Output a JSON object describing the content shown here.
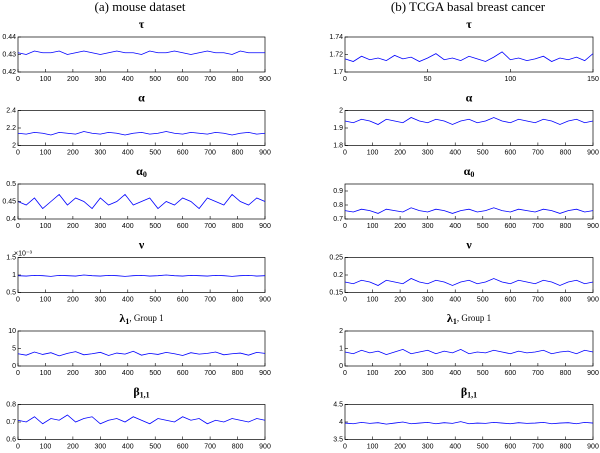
{
  "column_titles": [
    "(a) mouse dataset",
    "(b) TCGA basal breast cancer"
  ],
  "chart_data": [
    {
      "type": "line",
      "title": "τ",
      "color": "#0000ff",
      "x": [
        0,
        30,
        60,
        90,
        120,
        150,
        180,
        210,
        240,
        270,
        300,
        330,
        360,
        390,
        420,
        450,
        480,
        510,
        540,
        570,
        600,
        630,
        660,
        690,
        720,
        750,
        780,
        810,
        840,
        870,
        900
      ],
      "values": [
        0.431,
        0.43,
        0.432,
        0.431,
        0.431,
        0.432,
        0.43,
        0.431,
        0.432,
        0.431,
        0.43,
        0.431,
        0.432,
        0.431,
        0.431,
        0.43,
        0.432,
        0.431,
        0.431,
        0.432,
        0.431,
        0.43,
        0.431,
        0.432,
        0.431,
        0.431,
        0.43,
        0.432,
        0.431,
        0.431,
        0.431
      ],
      "xlim": [
        0,
        900
      ],
      "xticks": [
        0,
        100,
        200,
        300,
        400,
        500,
        600,
        700,
        800,
        900
      ],
      "ylim": [
        0.42,
        0.44
      ],
      "yticks": [
        0.42,
        0.43,
        0.44
      ]
    },
    {
      "type": "line",
      "title": "α",
      "color": "#0000ff",
      "x": [
        0,
        30,
        60,
        90,
        120,
        150,
        180,
        210,
        240,
        270,
        300,
        330,
        360,
        390,
        420,
        450,
        480,
        510,
        540,
        570,
        600,
        630,
        660,
        690,
        720,
        750,
        780,
        810,
        840,
        870,
        900
      ],
      "values": [
        2.14,
        2.13,
        2.15,
        2.14,
        2.12,
        2.15,
        2.14,
        2.13,
        2.16,
        2.14,
        2.13,
        2.15,
        2.14,
        2.12,
        2.14,
        2.15,
        2.13,
        2.14,
        2.16,
        2.14,
        2.13,
        2.15,
        2.14,
        2.13,
        2.15,
        2.14,
        2.12,
        2.14,
        2.15,
        2.13,
        2.14
      ],
      "xlim": [
        0,
        900
      ],
      "xticks": [
        0,
        100,
        200,
        300,
        400,
        500,
        600,
        700,
        800,
        900
      ],
      "ylim": [
        2,
        2.4
      ],
      "yticks": [
        2,
        2.2,
        2.4
      ]
    },
    {
      "type": "line",
      "title": "α",
      "title_sub": "0",
      "color": "#0000ff",
      "x": [
        0,
        30,
        60,
        90,
        120,
        150,
        180,
        210,
        240,
        270,
        300,
        330,
        360,
        390,
        420,
        450,
        480,
        510,
        540,
        570,
        600,
        630,
        660,
        690,
        720,
        750,
        780,
        810,
        840,
        870,
        900
      ],
      "values": [
        0.45,
        0.44,
        0.46,
        0.43,
        0.45,
        0.47,
        0.44,
        0.46,
        0.45,
        0.43,
        0.46,
        0.44,
        0.45,
        0.47,
        0.44,
        0.45,
        0.46,
        0.43,
        0.45,
        0.44,
        0.46,
        0.45,
        0.43,
        0.46,
        0.45,
        0.44,
        0.47,
        0.45,
        0.44,
        0.46,
        0.45
      ],
      "xlim": [
        0,
        900
      ],
      "xticks": [
        0,
        100,
        200,
        300,
        400,
        500,
        600,
        700,
        800,
        900
      ],
      "ylim": [
        0.4,
        0.5
      ],
      "yticks": [
        0.4,
        0.45,
        0.5
      ]
    },
    {
      "type": "line",
      "title": "ν",
      "y_multiplier": "×10⁻³",
      "color": "#0000ff",
      "x": [
        0,
        30,
        60,
        90,
        120,
        150,
        180,
        210,
        240,
        270,
        300,
        330,
        360,
        390,
        420,
        450,
        480,
        510,
        540,
        570,
        600,
        630,
        660,
        690,
        720,
        750,
        780,
        810,
        840,
        870,
        900
      ],
      "values": [
        0.98,
        0.97,
        0.99,
        0.98,
        0.96,
        0.99,
        0.98,
        0.97,
        1.0,
        0.98,
        0.97,
        0.99,
        0.98,
        0.96,
        0.98,
        0.99,
        0.97,
        0.98,
        1.0,
        0.98,
        0.97,
        0.99,
        0.98,
        0.97,
        0.99,
        0.98,
        0.96,
        0.98,
        0.99,
        0.97,
        0.98
      ],
      "xlim": [
        0,
        900
      ],
      "xticks": [
        0,
        100,
        200,
        300,
        400,
        500,
        600,
        700,
        800,
        900
      ],
      "ylim": [
        0.5,
        1.5
      ],
      "yticks": [
        0.5,
        1,
        1.5
      ]
    },
    {
      "type": "line",
      "title": "λ",
      "title_sub": "1",
      "title_suffix": ", Group 1",
      "color": "#0000ff",
      "x": [
        0,
        30,
        60,
        90,
        120,
        150,
        180,
        210,
        240,
        270,
        300,
        330,
        360,
        390,
        420,
        450,
        480,
        510,
        540,
        570,
        600,
        630,
        660,
        690,
        720,
        750,
        780,
        810,
        840,
        870,
        900
      ],
      "values": [
        3.5,
        3.1,
        4.0,
        3.3,
        3.8,
        2.9,
        3.6,
        4.1,
        3.2,
        3.5,
        3.9,
        3.0,
        3.7,
        3.4,
        4.2,
        3.1,
        3.6,
        3.3,
        3.9,
        3.5,
        3.0,
        3.8,
        3.4,
        3.6,
        4.0,
        3.2,
        3.5,
        3.7,
        3.1,
        3.9,
        3.6
      ],
      "xlim": [
        0,
        900
      ],
      "xticks": [
        0,
        100,
        200,
        300,
        400,
        500,
        600,
        700,
        800,
        900
      ],
      "ylim": [
        0,
        10
      ],
      "yticks": [
        0,
        5,
        10
      ]
    },
    {
      "type": "line",
      "title": "β",
      "title_sub": "1,1",
      "color": "#0000ff",
      "x": [
        0,
        30,
        60,
        90,
        120,
        150,
        180,
        210,
        240,
        270,
        300,
        330,
        360,
        390,
        420,
        450,
        480,
        510,
        540,
        570,
        600,
        630,
        660,
        690,
        720,
        750,
        780,
        810,
        840,
        870,
        900
      ],
      "values": [
        0.71,
        0.7,
        0.73,
        0.69,
        0.72,
        0.71,
        0.74,
        0.7,
        0.72,
        0.73,
        0.69,
        0.71,
        0.72,
        0.7,
        0.73,
        0.71,
        0.69,
        0.72,
        0.71,
        0.7,
        0.73,
        0.71,
        0.72,
        0.69,
        0.71,
        0.7,
        0.72,
        0.71,
        0.7,
        0.72,
        0.71
      ],
      "xlim": [
        0,
        900
      ],
      "xticks": [
        0,
        100,
        200,
        300,
        400,
        500,
        600,
        700,
        800,
        900
      ],
      "ylim": [
        0.6,
        0.8
      ],
      "yticks": [
        0.6,
        0.7,
        0.8
      ]
    },
    {
      "type": "line",
      "title": "τ",
      "color": "#0000ff",
      "x": [
        0,
        5,
        10,
        15,
        20,
        25,
        30,
        35,
        40,
        45,
        50,
        55,
        60,
        65,
        70,
        75,
        80,
        85,
        90,
        95,
        100,
        105,
        110,
        115,
        120,
        125,
        130,
        135,
        140,
        145,
        150
      ],
      "values": [
        1.715,
        1.712,
        1.718,
        1.714,
        1.716,
        1.713,
        1.719,
        1.715,
        1.717,
        1.712,
        1.716,
        1.721,
        1.714,
        1.716,
        1.713,
        1.718,
        1.715,
        1.712,
        1.717,
        1.723,
        1.714,
        1.716,
        1.713,
        1.715,
        1.718,
        1.712,
        1.716,
        1.714,
        1.717,
        1.713,
        1.721
      ],
      "xlim": [
        0,
        150
      ],
      "xticks": [
        0,
        50,
        100,
        150
      ],
      "ylim": [
        1.7,
        1.74
      ],
      "yticks": [
        1.7,
        1.72,
        1.74
      ]
    },
    {
      "type": "line",
      "title": "α",
      "color": "#0000ff",
      "x": [
        0,
        30,
        60,
        90,
        120,
        150,
        180,
        210,
        240,
        270,
        300,
        330,
        360,
        390,
        420,
        450,
        480,
        510,
        540,
        570,
        600,
        630,
        660,
        690,
        720,
        750,
        780,
        810,
        840,
        870,
        900
      ],
      "values": [
        1.94,
        1.93,
        1.95,
        1.94,
        1.92,
        1.95,
        1.94,
        1.93,
        1.96,
        1.94,
        1.93,
        1.95,
        1.94,
        1.92,
        1.94,
        1.95,
        1.93,
        1.94,
        1.96,
        1.94,
        1.93,
        1.95,
        1.94,
        1.93,
        1.95,
        1.94,
        1.92,
        1.94,
        1.95,
        1.93,
        1.94
      ],
      "xlim": [
        0,
        900
      ],
      "xticks": [
        0,
        100,
        200,
        300,
        400,
        500,
        600,
        700,
        800,
        900
      ],
      "ylim": [
        1.8,
        2
      ],
      "yticks": [
        1.8,
        1.9,
        2
      ]
    },
    {
      "type": "line",
      "title": "α",
      "title_sub": "0",
      "color": "#0000ff",
      "x": [
        0,
        30,
        60,
        90,
        120,
        150,
        180,
        210,
        240,
        270,
        300,
        330,
        360,
        390,
        420,
        450,
        480,
        510,
        540,
        570,
        600,
        630,
        660,
        690,
        720,
        750,
        780,
        810,
        840,
        870,
        900
      ],
      "values": [
        0.76,
        0.75,
        0.77,
        0.76,
        0.74,
        0.77,
        0.76,
        0.75,
        0.78,
        0.76,
        0.75,
        0.77,
        0.76,
        0.74,
        0.76,
        0.77,
        0.75,
        0.76,
        0.78,
        0.76,
        0.75,
        0.77,
        0.76,
        0.75,
        0.77,
        0.76,
        0.74,
        0.76,
        0.77,
        0.75,
        0.76
      ],
      "xlim": [
        0,
        900
      ],
      "xticks": [
        0,
        100,
        200,
        300,
        400,
        500,
        600,
        700,
        800,
        900
      ],
      "ylim": [
        0.7,
        0.95
      ],
      "yticks": [
        0.7,
        0.8,
        0.9
      ]
    },
    {
      "type": "line",
      "title": "ν",
      "color": "#0000ff",
      "x": [
        0,
        30,
        60,
        90,
        120,
        150,
        180,
        210,
        240,
        270,
        300,
        330,
        360,
        390,
        420,
        450,
        480,
        510,
        540,
        570,
        600,
        630,
        660,
        690,
        720,
        750,
        780,
        810,
        840,
        870,
        900
      ],
      "values": [
        0.18,
        0.175,
        0.185,
        0.18,
        0.17,
        0.185,
        0.18,
        0.175,
        0.19,
        0.18,
        0.175,
        0.185,
        0.18,
        0.17,
        0.18,
        0.185,
        0.175,
        0.18,
        0.19,
        0.18,
        0.175,
        0.185,
        0.18,
        0.175,
        0.185,
        0.18,
        0.17,
        0.18,
        0.185,
        0.175,
        0.18
      ],
      "xlim": [
        0,
        900
      ],
      "xticks": [
        0,
        100,
        200,
        300,
        400,
        500,
        600,
        700,
        800,
        900
      ],
      "ylim": [
        0.15,
        0.25
      ],
      "yticks": [
        0.15,
        0.2,
        0.25
      ]
    },
    {
      "type": "line",
      "title": "λ",
      "title_sub": "1",
      "title_suffix": ", Group 1",
      "color": "#0000ff",
      "x": [
        0,
        30,
        60,
        90,
        120,
        150,
        180,
        210,
        240,
        270,
        300,
        330,
        360,
        390,
        420,
        450,
        480,
        510,
        540,
        570,
        600,
        630,
        660,
        690,
        720,
        750,
        780,
        810,
        840,
        870,
        900
      ],
      "values": [
        0.8,
        0.7,
        0.9,
        0.75,
        0.85,
        0.65,
        0.8,
        0.95,
        0.7,
        0.8,
        0.9,
        0.7,
        0.85,
        0.75,
        0.95,
        0.7,
        0.8,
        0.75,
        0.9,
        0.8,
        0.7,
        0.85,
        0.75,
        0.8,
        0.9,
        0.7,
        0.8,
        0.85,
        0.7,
        0.9,
        0.8
      ],
      "xlim": [
        0,
        900
      ],
      "xticks": [
        0,
        100,
        200,
        300,
        400,
        500,
        600,
        700,
        800,
        900
      ],
      "ylim": [
        0,
        2
      ],
      "yticks": [
        0,
        1,
        2
      ]
    },
    {
      "type": "line",
      "title": "β",
      "title_sub": "1,1",
      "color": "#0000ff",
      "x": [
        0,
        30,
        60,
        90,
        120,
        150,
        180,
        210,
        240,
        270,
        300,
        330,
        360,
        390,
        420,
        450,
        480,
        510,
        540,
        570,
        600,
        630,
        660,
        690,
        720,
        750,
        780,
        810,
        840,
        870,
        900
      ],
      "values": [
        3.97,
        3.95,
        3.99,
        3.96,
        3.98,
        3.94,
        3.97,
        4.0,
        3.95,
        3.97,
        3.99,
        3.95,
        3.98,
        3.96,
        4.01,
        3.95,
        3.97,
        3.96,
        3.99,
        3.97,
        3.95,
        3.98,
        3.96,
        3.97,
        3.99,
        3.95,
        3.97,
        3.98,
        3.95,
        3.99,
        3.97
      ],
      "xlim": [
        0,
        900
      ],
      "xticks": [
        0,
        100,
        200,
        300,
        400,
        500,
        600,
        700,
        800,
        900
      ],
      "ylim": [
        3.5,
        4.5
      ],
      "yticks": [
        3.5,
        4,
        4.5
      ]
    }
  ]
}
